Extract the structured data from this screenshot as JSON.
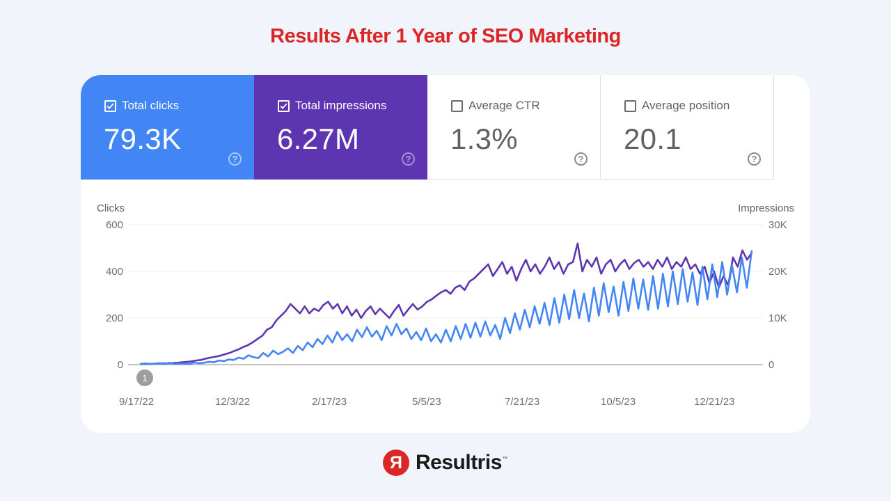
{
  "title": "Results After 1 Year of SEO Marketing",
  "metrics": [
    {
      "label": "Total clicks",
      "value": "79.3K",
      "checked": true,
      "color": "#4285f4"
    },
    {
      "label": "Total impressions",
      "value": "6.27M",
      "checked": true,
      "color": "#5e35b1"
    },
    {
      "label": "Average CTR",
      "value": "1.3%",
      "checked": false,
      "color": "#ffffff"
    },
    {
      "label": "Average position",
      "value": "20.1",
      "checked": false,
      "color": "#ffffff"
    }
  ],
  "icons": {
    "checkbox_checked": "✓",
    "help": "?"
  },
  "annotation_marker": "1",
  "logo": {
    "mark": "Я",
    "name": "Resultris",
    "tm": "™"
  },
  "chart_data": {
    "type": "line",
    "title": "",
    "xlabel": "",
    "ylabel_left": "Clicks",
    "ylabel_right": "Impressions",
    "y_left_ticks": [
      "0",
      "200",
      "400",
      "600"
    ],
    "y_right_ticks": [
      "0",
      "10K",
      "20K",
      "30K"
    ],
    "ylim_left": [
      0,
      600
    ],
    "ylim_right": [
      0,
      30000
    ],
    "x_ticks": [
      "9/17/22",
      "12/3/22",
      "2/17/23",
      "5/5/23",
      "7/21/23",
      "10/5/23",
      "12/21/23"
    ],
    "grid": true,
    "series": [
      {
        "name": "Clicks",
        "axis": "left",
        "color": "#4285f4",
        "values": [
          2,
          5,
          3,
          4,
          6,
          3,
          8,
          2,
          4,
          5,
          3,
          9,
          6,
          8,
          12,
          10,
          18,
          15,
          22,
          20,
          30,
          25,
          40,
          32,
          28,
          50,
          35,
          60,
          45,
          55,
          70,
          50,
          80,
          62,
          95,
          75,
          110,
          88,
          125,
          95,
          140,
          105,
          130,
          100,
          150,
          118,
          160,
          120,
          145,
          105,
          165,
          125,
          175,
          130,
          155,
          110,
          140,
          105,
          155,
          100,
          130,
          95,
          150,
          100,
          165,
          110,
          175,
          115,
          180,
          120,
          185,
          125,
          170,
          110,
          200,
          135,
          220,
          150,
          235,
          160,
          250,
          175,
          265,
          170,
          285,
          180,
          300,
          195,
          320,
          200,
          305,
          185,
          330,
          210,
          350,
          225,
          335,
          210,
          355,
          230,
          370,
          240,
          365,
          235,
          380,
          240,
          390,
          250,
          400,
          260,
          410,
          270,
          395,
          255,
          420,
          280,
          430,
          290,
          440,
          300,
          425,
          310,
          460,
          330,
          490
        ]
      },
      {
        "name": "Impressions",
        "axis": "right",
        "color": "#5e35b1",
        "values": [
          0.1,
          0.2,
          0.15,
          0.2,
          0.3,
          0.25,
          0.3,
          0.35,
          0.4,
          0.5,
          0.6,
          0.7,
          0.9,
          1.0,
          1.3,
          1.5,
          1.7,
          1.9,
          2.2,
          2.5,
          2.9,
          3.3,
          3.8,
          4.2,
          4.8,
          5.5,
          6.2,
          7.5,
          8.0,
          9.5,
          10.5,
          11.5,
          13.0,
          12.0,
          11.0,
          12.5,
          11.0,
          12.0,
          11.5,
          12.8,
          13.5,
          12.0,
          13.0,
          11.0,
          12.5,
          10.5,
          11.8,
          10.0,
          11.5,
          12.5,
          10.8,
          12.0,
          11.0,
          10.0,
          11.5,
          12.8,
          10.5,
          11.8,
          13.0,
          11.8,
          12.5,
          13.5,
          14.0,
          14.8,
          15.5,
          16.0,
          15.2,
          16.5,
          17.0,
          16.0,
          17.8,
          18.5,
          19.5,
          20.5,
          21.5,
          19.0,
          20.5,
          22.0,
          19.5,
          21.0,
          18.0,
          20.5,
          22.5,
          20.0,
          21.5,
          19.5,
          21.0,
          23.0,
          20.5,
          22.0,
          19.5,
          21.5,
          22.0,
          26.0,
          20.0,
          22.5,
          21.0,
          23.0,
          19.5,
          21.5,
          22.5,
          20.0,
          21.5,
          22.5,
          20.5,
          21.8,
          22.5,
          21.0,
          22.0,
          20.5,
          22.5,
          21.0,
          23.0,
          20.5,
          22.0,
          21.0,
          23.0,
          20.5,
          21.5,
          19.5,
          21.0,
          17.5,
          20.0,
          16.5,
          19.0,
          17.0,
          23.0,
          21.0,
          24.5,
          22.5,
          24.0
        ]
      }
    ],
    "annotations": [
      {
        "x": "9/17/22",
        "label": "1"
      }
    ]
  }
}
